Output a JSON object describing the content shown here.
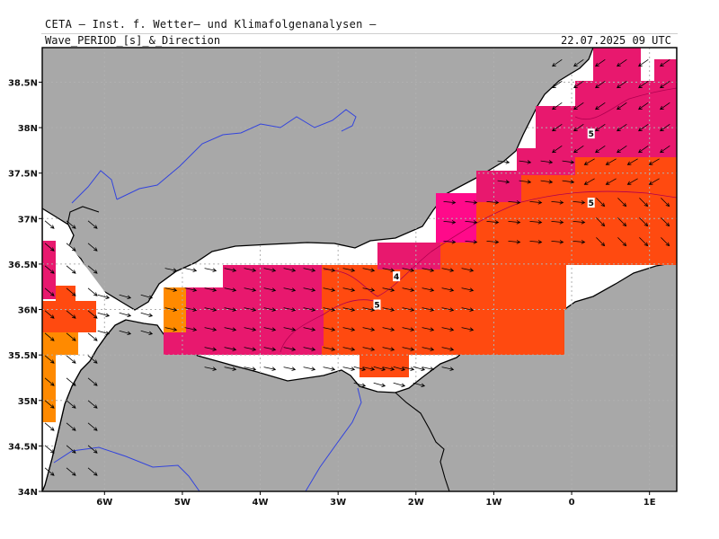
{
  "header": {
    "title": "CETA – Inst. f. Wetter– und Klimafolgenanalysen –",
    "variable": "Wave_PERIOD_[s]_&_Direction",
    "datetime": "22.07.2025 09 UTC"
  },
  "axes": {
    "lon_range": [
      -6.8,
      1.35
    ],
    "lat_range": [
      34.0,
      38.88
    ],
    "lon_ticks": [
      {
        "value": -6,
        "label": "6W"
      },
      {
        "value": -5,
        "label": "5W"
      },
      {
        "value": -4,
        "label": "4W"
      },
      {
        "value": -3,
        "label": "3W"
      },
      {
        "value": -2,
        "label": "2W"
      },
      {
        "value": -1,
        "label": "1W"
      },
      {
        "value": 0,
        "label": "0"
      },
      {
        "value": 1,
        "label": "1E"
      }
    ],
    "lat_ticks": [
      {
        "value": 34.0,
        "label": "34N"
      },
      {
        "value": 34.5,
        "label": "34.5N"
      },
      {
        "value": 35.0,
        "label": "35N"
      },
      {
        "value": 35.5,
        "label": "35.5N"
      },
      {
        "value": 36.0,
        "label": "36N"
      },
      {
        "value": 36.5,
        "label": "36.5N"
      },
      {
        "value": 37.0,
        "label": "37N"
      },
      {
        "value": 37.5,
        "label": "37.5N"
      },
      {
        "value": 38.0,
        "label": "38N"
      },
      {
        "value": 38.5,
        "label": "38.5N"
      }
    ]
  },
  "colors": {
    "land": "#a8a8a8",
    "sea": "#ffffff",
    "coast": "#000000",
    "rivers": "#3344dd",
    "borders": "#000000",
    "period_4_5": "#e8186e",
    "period_5_6": "#ff4a10",
    "period_6_7": "#ff8a00",
    "period_3_4": "#ff0a8a",
    "grid": "#b0b0b0",
    "arrow": "#000000"
  },
  "contour_labels": [
    {
      "text": "4",
      "lon": -2.25,
      "lat": 36.36
    },
    {
      "text": "5",
      "lon": -2.5,
      "lat": 36.05
    },
    {
      "text": "5",
      "lon": 0.25,
      "lat": 37.93
    },
    {
      "text": "5",
      "lon": 0.25,
      "lat": 37.17
    }
  ]
}
